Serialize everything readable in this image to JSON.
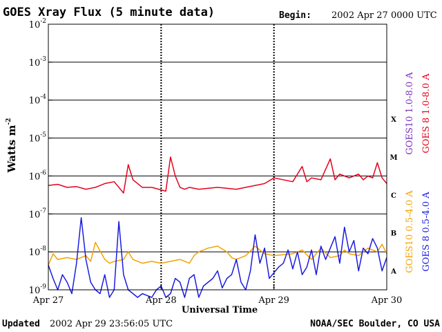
{
  "chart_data": {
    "type": "line",
    "title": "GOES Xray Flux (5 minute data)",
    "begin_label": "Begin:",
    "begin_value": "2002 Apr 27 0000 UTC",
    "xlabel": "Universal Time",
    "ylabel": "Watts m",
    "ylabel_sup": "-2",
    "y_scale": "log",
    "ylim_exponent": [
      -9,
      -2
    ],
    "y_ticks": [
      {
        "base": "10",
        "exp": "-2"
      },
      {
        "base": "10",
        "exp": "-3"
      },
      {
        "base": "10",
        "exp": "-4"
      },
      {
        "base": "10",
        "exp": "-5"
      },
      {
        "base": "10",
        "exp": "-6"
      },
      {
        "base": "10",
        "exp": "-7"
      },
      {
        "base": "10",
        "exp": "-8"
      },
      {
        "base": "10",
        "exp": "-9"
      }
    ],
    "x_ticks": [
      "Apr 27",
      "Apr 28",
      "Apr 29",
      "Apr 30"
    ],
    "flare_classes": [
      "X",
      "M",
      "C",
      "B",
      "A"
    ],
    "footer_left_label": "Updated",
    "footer_left_value": "2002 Apr 29 23:56:05 UTC",
    "footer_right": "NOAA/SEC Boulder, CO USA",
    "legend": [
      {
        "name": "GOES10 1.0-8.0 A",
        "color": "#7a2fc0"
      },
      {
        "name": "GOES 8 1.0-8.0 A",
        "color": "#e3001b"
      },
      {
        "name": "GOES10 0.5-4.0 A",
        "color": "#f2a200"
      },
      {
        "name": "GOES 8 0.5-4.0 A",
        "color": "#1a1ae0"
      }
    ],
    "series": [
      {
        "name": "GOES 8 1.0-8.0 A",
        "color": "#e3001b",
        "x_hours": [
          0,
          2,
          4,
          6,
          8,
          10,
          12,
          14,
          16,
          17,
          18,
          20,
          22,
          25,
          26,
          27,
          28,
          29,
          30,
          32,
          36,
          40,
          44,
          46,
          48,
          52,
          54,
          55,
          56,
          58,
          60,
          61,
          62,
          63,
          64,
          65,
          66,
          67,
          68,
          69,
          70,
          71,
          72
        ],
        "y_log10": [
          -6.25,
          -6.22,
          -6.3,
          -6.28,
          -6.35,
          -6.3,
          -6.2,
          -6.15,
          -6.45,
          -5.7,
          -6.1,
          -6.3,
          -6.3,
          -6.4,
          -5.5,
          -6.0,
          -6.3,
          -6.35,
          -6.3,
          -6.35,
          -6.3,
          -6.35,
          -6.25,
          -6.2,
          -6.05,
          -6.15,
          -5.75,
          -6.15,
          -6.05,
          -6.1,
          -5.55,
          -6.1,
          -5.95,
          -6.0,
          -6.05,
          -6.0,
          -5.95,
          -6.1,
          -6.0,
          -6.05,
          -5.65,
          -6.05,
          -6.2
        ]
      },
      {
        "name": "GOES10 0.5-4.0 A",
        "color": "#f2a200",
        "x_hours": [
          0,
          1,
          2,
          4,
          6,
          8,
          9,
          10,
          12,
          13,
          14,
          16,
          17,
          18,
          20,
          22,
          24,
          26,
          28,
          30,
          31,
          32,
          34,
          36,
          38,
          39,
          40,
          42,
          44,
          46,
          48,
          52,
          54,
          56,
          58,
          60,
          62,
          63,
          64,
          66,
          68,
          70,
          71,
          72
        ],
        "y_log10": [
          -8.35,
          -8.05,
          -8.2,
          -8.15,
          -8.2,
          -8.1,
          -8.25,
          -7.75,
          -8.2,
          -8.3,
          -8.25,
          -8.2,
          -8.0,
          -8.2,
          -8.3,
          -8.25,
          -8.3,
          -8.25,
          -8.2,
          -8.3,
          -8.1,
          -8.0,
          -7.9,
          -7.85,
          -8.0,
          -8.15,
          -8.2,
          -8.1,
          -7.85,
          -8.05,
          -8.1,
          -8.05,
          -7.95,
          -8.2,
          -7.9,
          -8.15,
          -8.1,
          -7.95,
          -8.05,
          -8.1,
          -7.9,
          -8.0,
          -7.8,
          -8.05
        ]
      },
      {
        "name": "GOES 8 0.5-4.0 A",
        "color": "#1a1ae0",
        "x_hours": [
          0,
          1,
          2,
          3,
          4,
          5,
          6,
          7,
          8,
          9,
          10,
          11,
          12,
          13,
          14,
          15,
          16,
          17,
          18,
          19,
          20,
          21,
          22,
          23,
          24,
          25,
          26,
          27,
          28,
          29,
          30,
          31,
          32,
          33,
          34,
          35,
          36,
          37,
          38,
          39,
          40,
          41,
          42,
          43,
          44,
          45,
          46,
          47,
          48,
          49,
          50,
          51,
          52,
          53,
          54,
          55,
          56,
          57,
          58,
          59,
          60,
          61,
          62,
          63,
          64,
          65,
          66,
          67,
          68,
          69,
          70,
          71,
          72
        ],
        "y_log10": [
          -8.35,
          -8.7,
          -9.0,
          -8.6,
          -8.8,
          -9.1,
          -8.3,
          -7.1,
          -8.2,
          -8.8,
          -9.0,
          -9.1,
          -8.6,
          -9.2,
          -9.0,
          -7.2,
          -8.6,
          -9.0,
          -9.1,
          -9.2,
          -9.1,
          -9.15,
          -9.2,
          -9.0,
          -8.9,
          -9.2,
          -9.1,
          -8.7,
          -8.8,
          -9.2,
          -8.7,
          -8.6,
          -9.2,
          -8.9,
          -8.8,
          -8.7,
          -8.5,
          -8.95,
          -8.7,
          -8.6,
          -8.2,
          -8.8,
          -9.0,
          -8.5,
          -7.55,
          -8.3,
          -7.9,
          -8.7,
          -8.55,
          -8.4,
          -8.3,
          -7.95,
          -8.45,
          -8.0,
          -8.6,
          -8.4,
          -7.95,
          -8.6,
          -7.85,
          -8.2,
          -7.9,
          -7.6,
          -8.3,
          -7.35,
          -8.0,
          -7.7,
          -8.5,
          -7.9,
          -8.05,
          -7.65,
          -7.9,
          -8.5,
          -8.15
        ]
      }
    ]
  }
}
